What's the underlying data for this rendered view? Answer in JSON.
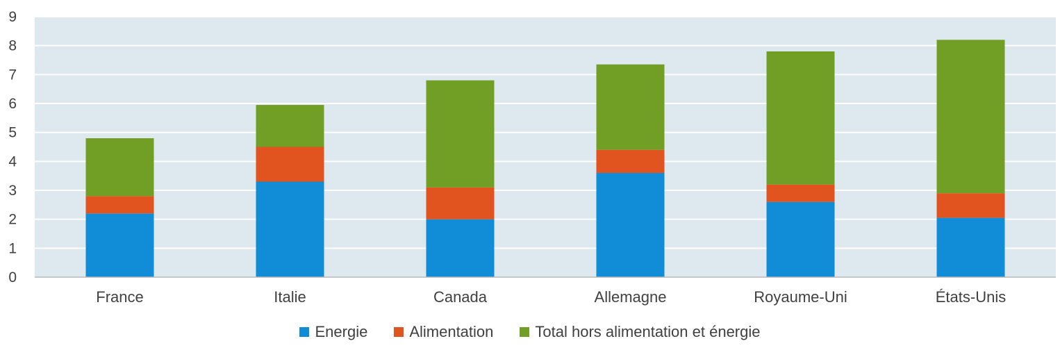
{
  "chart_data": {
    "type": "bar",
    "stacked": true,
    "categories": [
      "France",
      "Italie",
      "Canada",
      "Allemagne",
      "Royaume-Uni",
      "États-Unis"
    ],
    "series": [
      {
        "name": "Energie",
        "color": "#118dd8",
        "values": [
          2.2,
          3.3,
          2.0,
          3.6,
          2.6,
          2.05
        ]
      },
      {
        "name": "Alimentation",
        "color": "#e1541f",
        "values": [
          0.6,
          1.2,
          1.1,
          0.8,
          0.6,
          0.85
        ]
      },
      {
        "name": "Total hors alimentation et énergie",
        "color": "#719e25",
        "values": [
          2.0,
          1.45,
          3.7,
          2.95,
          4.6,
          5.3
        ]
      }
    ],
    "ylim": [
      0,
      9
    ],
    "yticks": [
      "0",
      "1",
      "2",
      "3",
      "4",
      "5",
      "6",
      "7",
      "8",
      "9"
    ],
    "grid": true,
    "plot_background": "#dde9ef",
    "legend_position": "bottom"
  }
}
